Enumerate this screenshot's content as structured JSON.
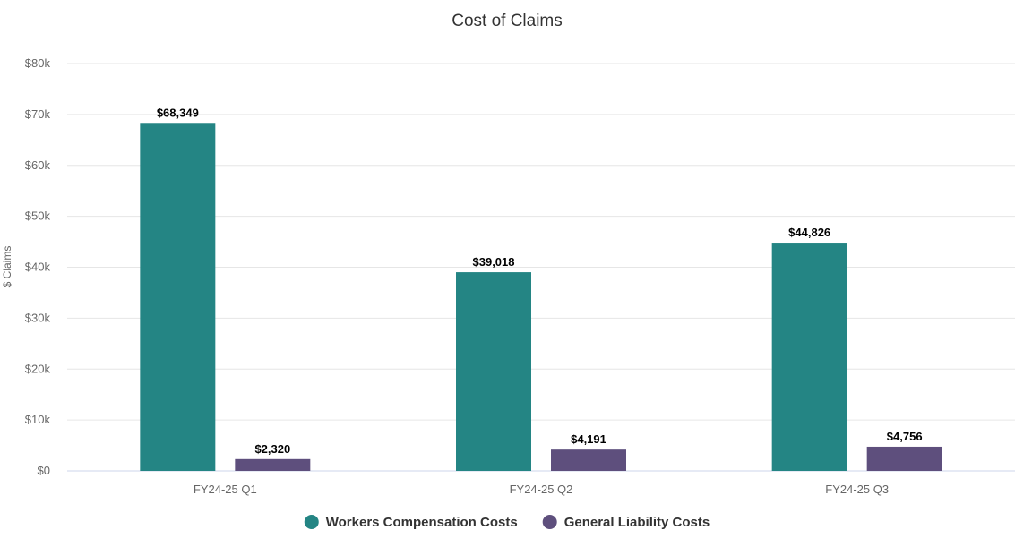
{
  "chart_data": {
    "type": "bar",
    "title": "Cost of Claims",
    "xlabel": "",
    "ylabel": "$ Claims",
    "categories": [
      "FY24-25 Q1",
      "FY24-25 Q2",
      "FY24-25 Q3"
    ],
    "ylim": [
      0,
      80000
    ],
    "yticks": [
      0,
      10000,
      20000,
      30000,
      40000,
      50000,
      60000,
      70000,
      80000
    ],
    "ytick_labels": [
      "$0",
      "$10k",
      "$20k",
      "$30k",
      "$40k",
      "$50k",
      "$60k",
      "$70k",
      "$80k"
    ],
    "grid": true,
    "legend_position": "bottom-center",
    "series": [
      {
        "name": "Workers Compensation Costs",
        "color": "#248584",
        "values": [
          68349,
          39018,
          44826
        ],
        "value_labels": [
          "$68,349",
          "$39,018",
          "$44,826"
        ]
      },
      {
        "name": "General Liability Costs",
        "color": "#5e4f7d",
        "values": [
          2320,
          4191,
          4756
        ],
        "value_labels": [
          "$2,320",
          "$4,191",
          "$4,756"
        ]
      }
    ]
  }
}
